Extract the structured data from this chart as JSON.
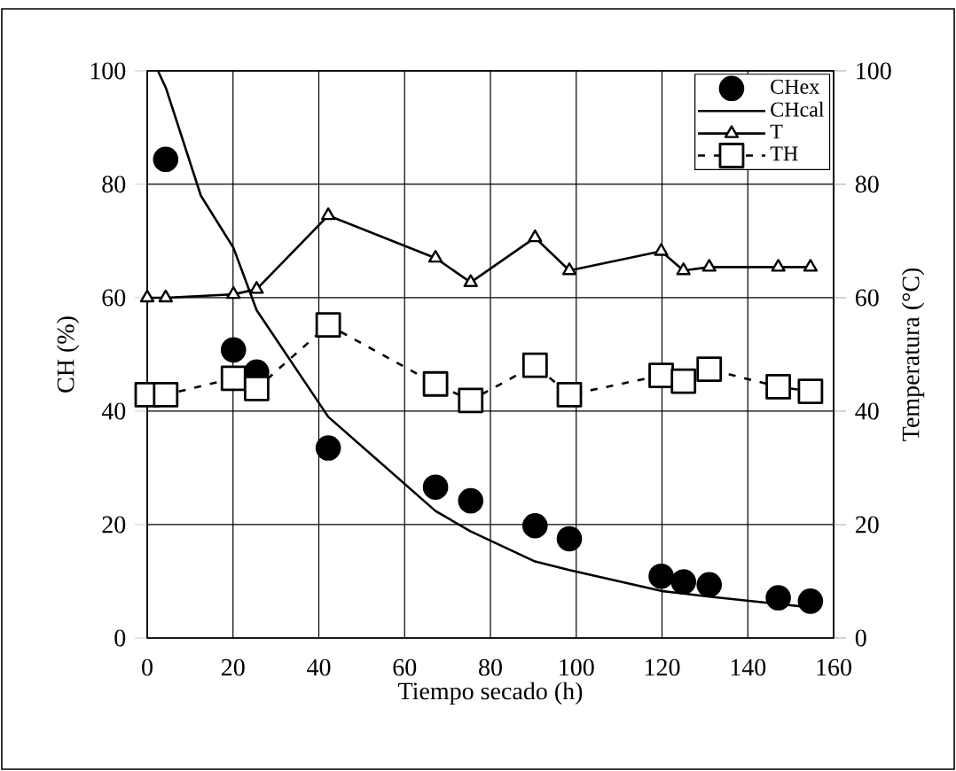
{
  "chart_data": {
    "type": "line",
    "xlabel": "Tiempo secado (h)",
    "ylabel": "CH (%)",
    "y2label": "Temperatura (°C)",
    "xlim": [
      0,
      160
    ],
    "xticks": [
      0,
      20,
      40,
      60,
      80,
      100,
      120,
      140,
      160
    ],
    "ylim": [
      0,
      100
    ],
    "yticks": [
      0,
      20,
      40,
      60,
      80,
      100
    ],
    "y2lim": [
      0,
      100
    ],
    "y2ticks": [
      0,
      20,
      40,
      60,
      80,
      100
    ],
    "grid": true,
    "legend": "top right",
    "series": [
      {
        "name": "CHex",
        "type": "scatter",
        "marker": "circle",
        "color": "#000000",
        "x": [
          4.3,
          20.1,
          25.5,
          42.2,
          67.2,
          75.4,
          90.4,
          98.4,
          119.8,
          125,
          131,
          147.1,
          154.6
        ],
        "values": [
          84.4,
          50.8,
          46.9,
          33.5,
          26.6,
          24.2,
          19.8,
          17.5,
          10.9,
          9.9,
          9.4,
          7.1,
          6.5
        ]
      },
      {
        "name": "CHcal",
        "marker": "none",
        "line_style": "solid",
        "color": "#000000",
        "x": [
          2.5,
          4.4,
          12.5,
          20.1,
          25.5,
          42.2,
          67.2,
          75.4,
          90.4,
          98.4,
          119.8,
          131,
          147.1,
          154.6
        ],
        "values": [
          100,
          96.9,
          78,
          68.8,
          57.8,
          39,
          22.4,
          18.8,
          13.5,
          12,
          8.3,
          7.3,
          6,
          5.4
        ]
      },
      {
        "name": "T",
        "marker": "triangle",
        "line_style": "solid",
        "axis": "y2",
        "color": "#000000",
        "x": [
          0,
          4.3,
          20.1,
          25.5,
          42.2,
          67.2,
          75.4,
          90.4,
          98.4,
          119.8,
          125,
          131,
          147.1,
          154.6
        ],
        "values": [
          60,
          60,
          60.6,
          61.5,
          74.5,
          67,
          62.7,
          70.6,
          64.8,
          68.2,
          64.8,
          65.4,
          65.4,
          65.4
        ]
      },
      {
        "name": "TH",
        "marker": "square",
        "line_style": "dashed",
        "axis": "y2",
        "color": "#000000",
        "x": [
          0,
          4.3,
          20.1,
          25.5,
          42.2,
          67.2,
          75.4,
          90.4,
          98.4,
          119.8,
          125,
          131,
          147.1,
          154.6
        ],
        "values": [
          42.9,
          42.9,
          45.8,
          44,
          55.2,
          44.8,
          41.9,
          48.1,
          42.9,
          46.3,
          45.3,
          47.4,
          44.3,
          43.5
        ]
      }
    ]
  }
}
